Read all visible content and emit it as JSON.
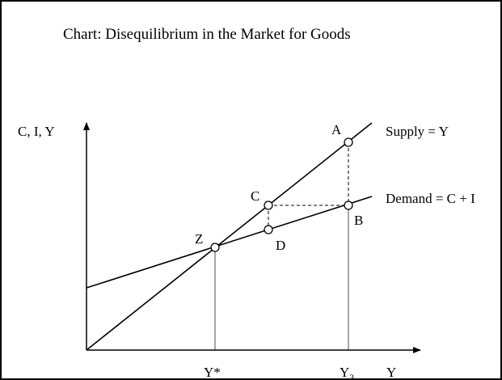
{
  "title": "Chart: Disequilibrium in the Market for Goods",
  "y_axis_label": "C, I, Y",
  "x_axis_label": "Y",
  "lines": [
    {
      "label": "Supply = Y"
    },
    {
      "label": "Demand = C + I"
    }
  ],
  "points": [
    "A",
    "B",
    "C",
    "D",
    "Z"
  ],
  "x_ticks": [
    {
      "base": "Y*"
    },
    {
      "base": "Y",
      "sub": "3"
    }
  ]
}
